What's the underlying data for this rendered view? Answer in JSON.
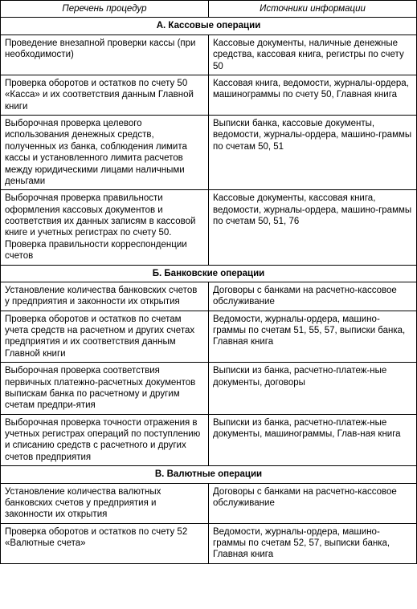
{
  "headers": {
    "procedures": "Перечень процедур",
    "sources": "Источники информации"
  },
  "sections": [
    {
      "title": "А. Кассовые операции",
      "rows": [
        {
          "procedure": "Проведение внезапной проверки кассы (при необходимости)",
          "source": "Кассовые документы, наличные денежные средства, кассовая книга, регистры по счету 50"
        },
        {
          "procedure": "Проверка оборотов и остатков по счету 50 «Касса» и их соответствия данным Главной книги",
          "source": "Кассовая книга, ведомости, журналы-ордера, машинограммы по счету 50, Главная книга"
        },
        {
          "procedure": "Выборочная проверка целевого использования денежных средств, полученных из банка, соблюдения лимита кассы и установленного лимита расчетов между юридическими лицами наличными деньгами",
          "source": "Выписки банка, кассовые документы, ведомости, журналы-ордера, машино-граммы по счетам 50, 51"
        },
        {
          "procedure": "Выборочная проверка правильности оформления кассовых документов и соответствия их данных записям в кассовой книге и учетных регистрах по счету 50. Проверка правильности корреспонденции счетов",
          "source": "Кассовые документы, кассовая книга, ведомости, журналы-ордера, машино-граммы по счетам 50, 51, 76"
        }
      ]
    },
    {
      "title": "Б. Банковские операции",
      "rows": [
        {
          "procedure": "Установление количества банковских счетов у предприятия и законности их открытия",
          "source": "Договоры с банками на расчетно-кассовое обслуживание"
        },
        {
          "procedure": "Проверка оборотов и остатков по счетам учета средств на расчетном и других счетах предприятия и их соответствия данным Главной книги",
          "source": "Ведомости, журналы-ордера, машино-граммы по счетам 51, 55, 57, выписки банка, Главная книга"
        },
        {
          "procedure": "Выборочная проверка соответствия первичных платежно-расчетных документов выпискам банка по расчетному и другим счетам предпри-ятия",
          "source": "Выписки из банка, расчетно-платеж-ные документы, договоры"
        },
        {
          "procedure": "Выборочная проверка точности отражения в учетных регистрах операций по поступлению и списанию средств с расчетного и других счетов предприятия",
          "source": "Выписки из банка, расчетно-платеж-ные документы, машинограммы, Глав-ная книга"
        }
      ]
    },
    {
      "title": "В. Валютные операции",
      "rows": [
        {
          "procedure": "Установление количества валютных банковских счетов у предприятия и законности их открытия",
          "source": "Договоры с банками на расчетно-кассовое обслуживание"
        },
        {
          "procedure": "Проверка оборотов и остатков по счету 52 «Валютные счета»",
          "source": "Ведомости, журналы-ордера, машино-граммы по счетам 52, 57, выписки банка, Главная книга"
        }
      ]
    }
  ]
}
